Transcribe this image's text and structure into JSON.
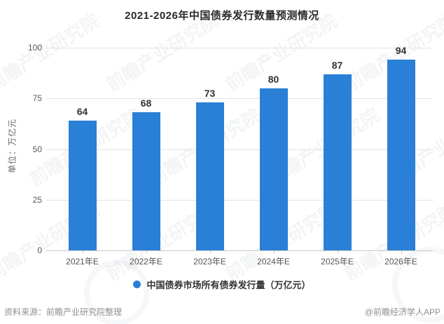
{
  "title": "2021-2026年中国债券发行数量预测情况",
  "y_axis": {
    "unit_label": "单位：万亿元",
    "tick_labels": [
      "0",
      "25",
      "50",
      "75",
      "100"
    ]
  },
  "chart_data": {
    "type": "bar",
    "title": "2021-2026年中国债券发行数量预测情况",
    "categories": [
      "2021年E",
      "2022年E",
      "2023年E",
      "2024年E",
      "2025年E",
      "2026年E"
    ],
    "values": [
      64,
      68,
      73,
      80,
      87,
      94
    ],
    "series_name": "中国债券市场所有债券发行量（万亿元）",
    "xlabel": "",
    "ylabel": "单位：万亿元",
    "ylim": [
      0,
      100
    ],
    "yticks": [
      0,
      25,
      50,
      75,
      100
    ],
    "grid": true,
    "legend_position": "bottom",
    "bar_color": "#2a7fd6"
  },
  "legend": {
    "label": "中国债券市场所有债券发行量（万亿元）",
    "marker": "circle-icon",
    "marker_color": "#2a7fd6"
  },
  "footer": {
    "source": "资料来源：前瞻产业研究院整理",
    "credit": "@前瞻经济学人APP"
  },
  "watermark": {
    "text": "前瞻产业研究院"
  },
  "colors": {
    "bar": "#2a7fd6",
    "title_text": "#2b2b2b",
    "axis_text": "#595959",
    "grid_line": "#e4e4e4",
    "axis_line": "#c9c9c9",
    "value_label": "#333333",
    "footer_text": "#8f8f8f"
  }
}
